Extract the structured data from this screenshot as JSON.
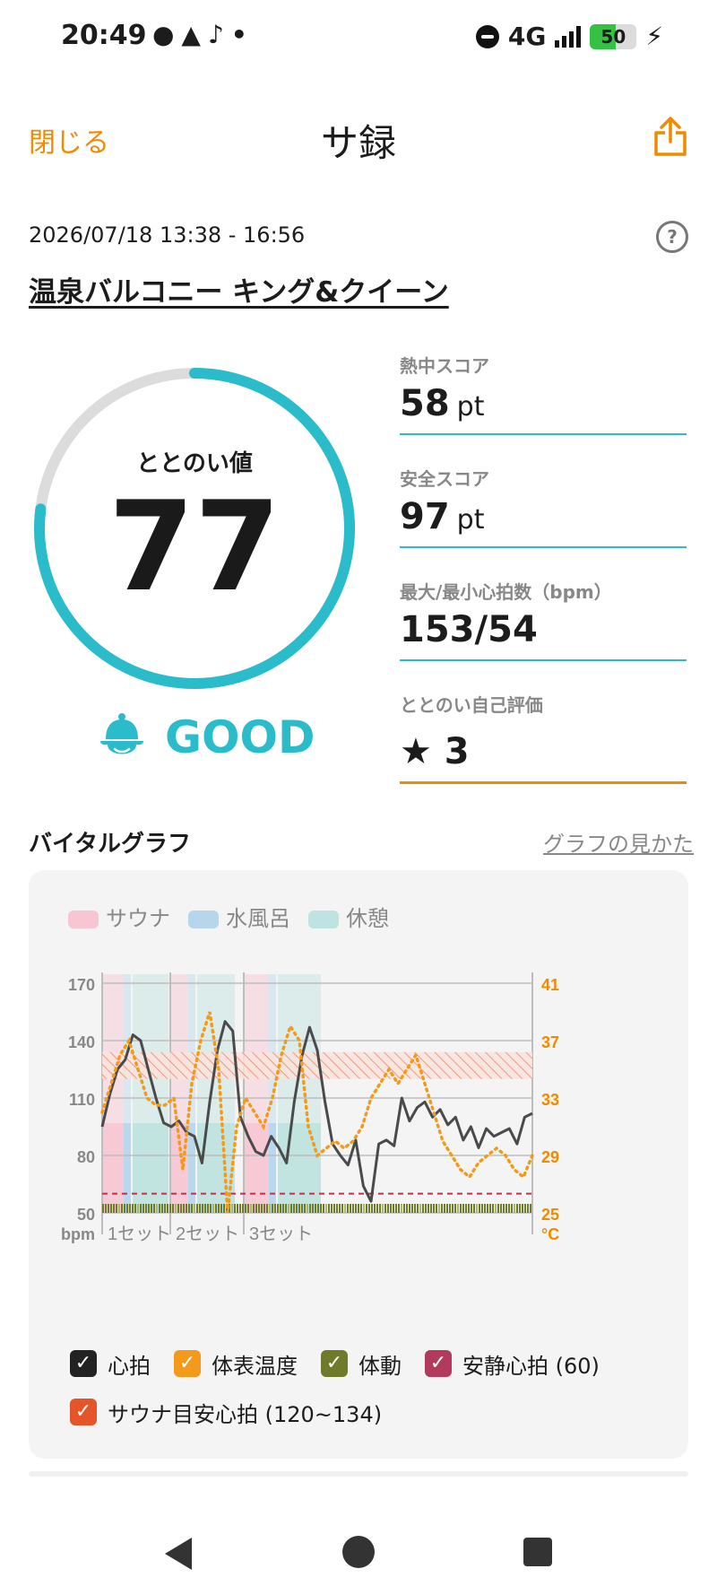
{
  "status": {
    "time": "20:49",
    "network": "4G",
    "battery": "50"
  },
  "header": {
    "close_label": "閉じる",
    "title": "サ録"
  },
  "session": {
    "datetime": "2026/07/18 13:38 - 16:56",
    "facility": "温泉バルコニー キング&クイーン"
  },
  "gauge": {
    "label": "ととのい値",
    "value": "77",
    "fraction": 0.77,
    "rating": "GOOD"
  },
  "metrics": [
    {
      "label": "熱中スコア",
      "value": "58",
      "unit": "pt"
    },
    {
      "label": "安全スコア",
      "value": "97",
      "unit": "pt"
    },
    {
      "label": "最大/最小心拍数（bpm）",
      "value": "153/54",
      "unit": ""
    },
    {
      "label": "ととのい自己評価",
      "value": "★ 3",
      "unit": ""
    }
  ],
  "vital": {
    "title": "バイタルグラフ",
    "help_link": "グラフの見かた",
    "phase_legend": [
      {
        "label": "サウナ",
        "color": "#f7c6d2"
      },
      {
        "label": "水風呂",
        "color": "#b6d6ec"
      },
      {
        "label": "休憩",
        "color": "#bfe3e0"
      }
    ],
    "toggles": [
      {
        "label": "心拍",
        "color": "#222222"
      },
      {
        "label": "体表温度",
        "color": "#f39a1b"
      },
      {
        "label": "体動",
        "color": "#6f7a2a"
      },
      {
        "label": "安静心拍 (60)",
        "color": "#b23a5c"
      },
      {
        "label": "サウナ目安心拍 (120~134)",
        "color": "#e6542a"
      }
    ]
  },
  "chart_data": {
    "type": "line",
    "y_left": {
      "ticks": [
        50,
        80,
        110,
        140,
        170
      ],
      "unit": "bpm",
      "range": [
        50,
        170
      ]
    },
    "y_right": {
      "ticks": [
        25,
        29,
        33,
        37,
        41
      ],
      "unit": "°C",
      "range": [
        25,
        41
      ]
    },
    "sets": [
      "1セット",
      "2セット",
      "3セット"
    ],
    "resting_hr": 60,
    "sauna_target_hr": [
      120,
      134
    ],
    "series": [
      {
        "name": "心拍",
        "values": [
          95,
          112,
          125,
          130,
          143,
          140,
          125,
          110,
          97,
          95,
          98,
          92,
          90,
          76,
          108,
          135,
          150,
          145,
          100,
          90,
          82,
          80,
          90,
          84,
          76,
          108,
          132,
          147,
          135,
          108,
          86,
          80,
          75,
          88,
          64,
          56,
          86,
          88,
          85,
          110,
          98,
          105,
          108,
          100,
          104,
          96,
          100,
          88,
          95,
          84,
          94,
          90,
          92,
          94,
          86,
          100,
          102
        ]
      },
      {
        "name": "体表温度",
        "values": [
          32,
          34,
          36,
          37,
          35,
          33,
          32.5,
          32.5,
          33,
          28,
          34,
          37,
          39,
          35,
          25,
          31,
          33,
          32,
          31,
          33,
          36,
          38,
          37,
          31,
          29,
          29.5,
          30,
          29.5,
          30,
          31,
          33,
          34,
          35,
          34,
          35,
          36,
          34,
          32,
          30,
          29,
          28,
          27.5,
          28.5,
          29,
          29.5,
          29,
          28,
          27.5,
          29
        ]
      }
    ]
  }
}
